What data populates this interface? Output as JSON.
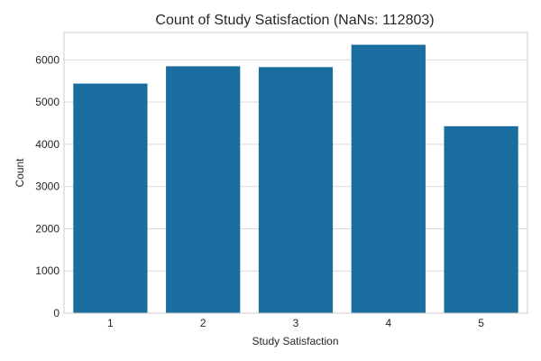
{
  "chart_data": {
    "type": "bar",
    "title": "Count of Study Satisfaction (NaNs: 112803)",
    "xlabel": "Study Satisfaction",
    "ylabel": "Count",
    "categories": [
      "1",
      "2",
      "3",
      "4",
      "5"
    ],
    "values": [
      5440,
      5850,
      5830,
      6360,
      4430
    ],
    "ylim": [
      0,
      6650
    ],
    "yticks": [
      0,
      1000,
      2000,
      3000,
      4000,
      5000,
      6000
    ],
    "grid": true,
    "bar_color": "#1a6d9e",
    "grid_color": "#d9d9d9",
    "frame_color": "#cccccc"
  }
}
